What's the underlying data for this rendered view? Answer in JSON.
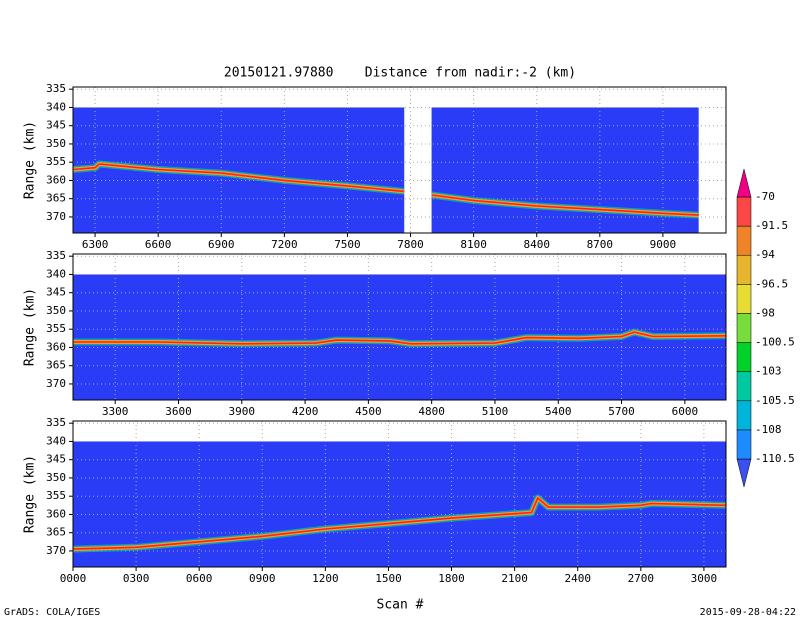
{
  "title": "20150121.97880    Distance from nadir:-2 (km)",
  "y_label": "Range (km)",
  "x_label": "Scan #",
  "credit": "GrADS: COLA/IGES",
  "timestamp": "2015-09-28-04:22",
  "colorbar": {
    "levels": [
      -110.5,
      -108,
      -105.5,
      -103,
      -100.5,
      -98,
      -96.5,
      -94,
      -91.5,
      -70
    ],
    "colors": [
      "#3c50f0",
      "#1e8cff",
      "#00b4dc",
      "#00c8a0",
      "#00d228",
      "#78dc3c",
      "#e6dc32",
      "#e6b42d",
      "#f08228",
      "#fa4646",
      "#f00082"
    ]
  },
  "chart_data": [
    {
      "type": "line",
      "xlim": [
        6195,
        9300
      ],
      "ylim": [
        374.4,
        334.4
      ],
      "xticks": [
        6300,
        6600,
        6900,
        7200,
        7500,
        7800,
        8100,
        8400,
        8700,
        9000
      ],
      "yticks": [
        335,
        340,
        345,
        350,
        355,
        360,
        365,
        370
      ],
      "grid": true,
      "background": "#2a3cf5",
      "data_top": 340,
      "coverage": [
        [
          6195,
          7770
        ],
        [
          7900,
          9170
        ]
      ],
      "series": [
        {
          "color": "#ff2020",
          "x": [
            6195,
            6300,
            6320,
            6600,
            6900,
            7200,
            7500,
            7770,
            7835,
            7900,
            8100,
            8400,
            8700,
            9000,
            9170
          ],
          "values": [
            357,
            356.5,
            355.5,
            357,
            358,
            360,
            361.5,
            363,
            null,
            364,
            365.5,
            367,
            368,
            369,
            369.5
          ]
        }
      ]
    },
    {
      "type": "line",
      "xlim": [
        3100,
        6195
      ],
      "ylim": [
        374.4,
        334.4
      ],
      "xticks": [
        3300,
        3600,
        3900,
        4200,
        4500,
        4800,
        5100,
        5400,
        5700,
        6000
      ],
      "yticks": [
        335,
        340,
        345,
        350,
        355,
        360,
        365,
        370
      ],
      "grid": true,
      "background": "#2a3cf5",
      "data_top": 340,
      "coverage": [
        [
          3100,
          6195
        ]
      ],
      "series": [
        {
          "color": "#ff2020",
          "x": [
            3100,
            3500,
            3900,
            4250,
            4350,
            4600,
            4700,
            5100,
            5250,
            5500,
            5700,
            5760,
            5850,
            6195
          ],
          "values": [
            358.5,
            358.5,
            359,
            358.8,
            358,
            358.2,
            359,
            358.8,
            357.3,
            357.5,
            357,
            355.8,
            357,
            356.8
          ]
        }
      ]
    },
    {
      "type": "line",
      "xlim": [
        0,
        3105
      ],
      "ylim": [
        374.4,
        334.4
      ],
      "xticks": [
        {
          "value": 0,
          "label": "0000"
        },
        {
          "value": 300,
          "label": "0300"
        },
        {
          "value": 600,
          "label": "0600"
        },
        {
          "value": 900,
          "label": "0900"
        },
        1200,
        1500,
        1800,
        2100,
        2400,
        2700,
        3000
      ],
      "yticks": [
        335,
        340,
        345,
        350,
        355,
        360,
        365,
        370
      ],
      "grid": true,
      "background": "#2a3cf5",
      "data_top": 340,
      "coverage": [
        [
          0,
          3105
        ]
      ],
      "series": [
        {
          "color": "#ff2020",
          "x": [
            0,
            300,
            600,
            900,
            1200,
            1500,
            1800,
            2100,
            2180,
            2210,
            2260,
            2500,
            2700,
            2750,
            3105
          ],
          "values": [
            369.5,
            369,
            367.5,
            366,
            364,
            362.5,
            361,
            359.8,
            359.5,
            355.5,
            358,
            358,
            357.5,
            357,
            357.5
          ]
        }
      ]
    }
  ]
}
